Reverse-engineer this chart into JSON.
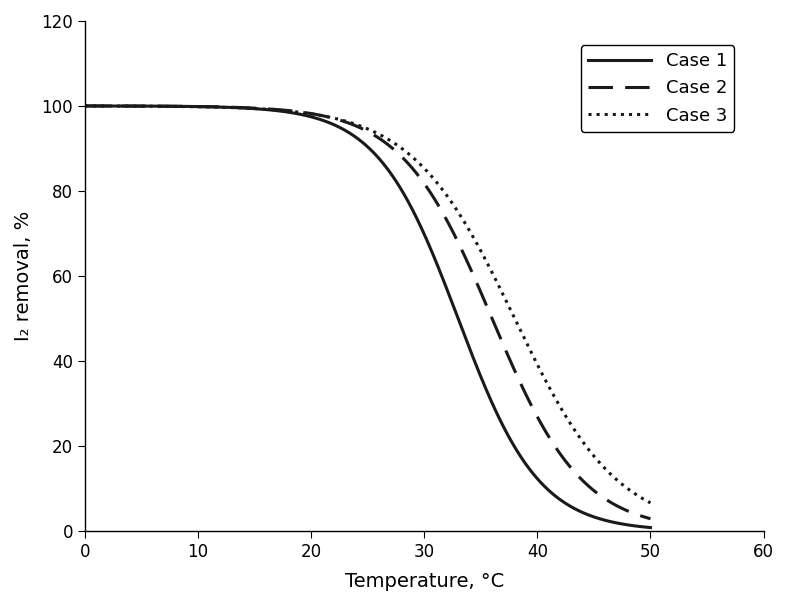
{
  "xlabel": "Temperature, °C",
  "ylabel": "I₂ removal, %",
  "xlim": [
    0,
    60
  ],
  "ylim": [
    0,
    120
  ],
  "xticks": [
    0,
    10,
    20,
    30,
    40,
    50,
    60
  ],
  "yticks": [
    0,
    20,
    40,
    60,
    80,
    100,
    120
  ],
  "line_color": "#1a1a1a",
  "legend_labels": [
    "Case 1",
    "Case 2",
    "Case 3"
  ],
  "figsize": [
    7.88,
    6.05
  ],
  "dpi": 100,
  "background_color": "#ffffff",
  "case1_inflect": 33,
  "case1_steep": 0.28,
  "case2_inflect": 36,
  "case2_steep": 0.25,
  "case3_inflect": 38,
  "case3_steep": 0.22,
  "linewidth": 2.2,
  "legend_fontsize": 13,
  "axis_fontsize": 14,
  "tick_fontsize": 12
}
